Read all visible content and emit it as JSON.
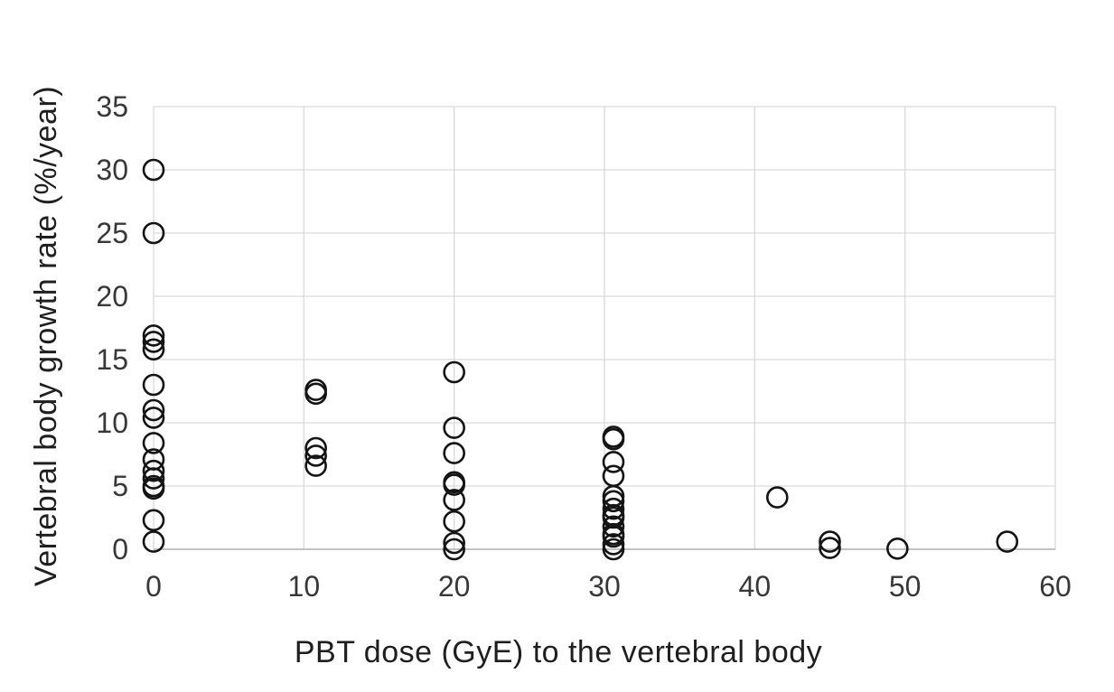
{
  "chart_data": {
    "type": "scatter",
    "title": "",
    "xlabel": "PBT dose (GyE) to the vertebral body",
    "ylabel": "Vertebral body growth rate (%/year)",
    "xlim": [
      0,
      60
    ],
    "ylim": [
      0,
      35
    ],
    "x_ticks": [
      0,
      10,
      20,
      30,
      40,
      50,
      60
    ],
    "y_ticks": [
      0,
      5,
      10,
      15,
      20,
      25,
      30,
      35
    ],
    "grid": true,
    "legend": "none",
    "marker": "open-circle",
    "points": [
      [
        0,
        30.0
      ],
      [
        0,
        25.0
      ],
      [
        0,
        16.9
      ],
      [
        0,
        16.4
      ],
      [
        0,
        15.8
      ],
      [
        0,
        13.0
      ],
      [
        0,
        11.0
      ],
      [
        0,
        10.4
      ],
      [
        0,
        8.4
      ],
      [
        0,
        7.1
      ],
      [
        0,
        6.2
      ],
      [
        0,
        5.6
      ],
      [
        0,
        5.0
      ],
      [
        0,
        4.8
      ],
      [
        0,
        2.3
      ],
      [
        0,
        0.6
      ],
      [
        10.8,
        12.6
      ],
      [
        10.8,
        12.3
      ],
      [
        10.8,
        8.0
      ],
      [
        10.8,
        7.4
      ],
      [
        10.8,
        6.6
      ],
      [
        20,
        14.0
      ],
      [
        20,
        9.6
      ],
      [
        20,
        7.6
      ],
      [
        20,
        5.3
      ],
      [
        20,
        5.1
      ],
      [
        20,
        3.9
      ],
      [
        20,
        2.2
      ],
      [
        20,
        0.5
      ],
      [
        20,
        0.0
      ],
      [
        30.6,
        8.9
      ],
      [
        30.6,
        8.7
      ],
      [
        30.6,
        6.9
      ],
      [
        30.6,
        5.8
      ],
      [
        30.6,
        4.2
      ],
      [
        30.6,
        3.8
      ],
      [
        30.6,
        3.2
      ],
      [
        30.6,
        2.7
      ],
      [
        30.6,
        2.5
      ],
      [
        30.6,
        1.8
      ],
      [
        30.6,
        1.2
      ],
      [
        30.6,
        1.0
      ],
      [
        30.6,
        0.4
      ],
      [
        30.6,
        0.0
      ],
      [
        41.5,
        4.1
      ],
      [
        45,
        0.6
      ],
      [
        45,
        0.1
      ],
      [
        49.5,
        0.05
      ],
      [
        56.8,
        0.6
      ]
    ],
    "colors": {
      "marker": "#141414",
      "grid": "#d9d9d9",
      "axis": "#b0b0b0",
      "tick_text": "#383838",
      "title_text": "#1f1f1f"
    }
  }
}
